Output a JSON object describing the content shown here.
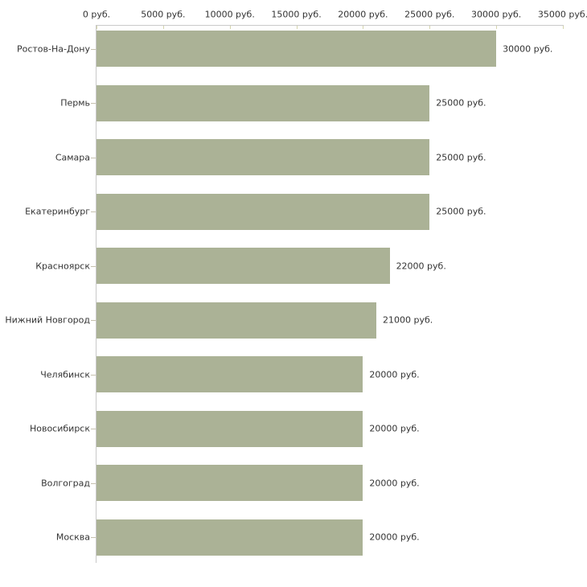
{
  "chart_data": {
    "type": "bar",
    "orientation": "horizontal",
    "title": "",
    "xlabel": "",
    "ylabel": "",
    "unit": "руб.",
    "categories": [
      "Ростов-На-Дону",
      "Пермь",
      "Самара",
      "Екатеринбург",
      "Красноярск",
      "Нижний Новгород",
      "Челябинск",
      "Новосибирск",
      "Волгоград",
      "Москва"
    ],
    "values": [
      30000,
      25000,
      25000,
      25000,
      22000,
      21000,
      20000,
      20000,
      20000,
      20000
    ],
    "value_labels": [
      "30000 руб.",
      "25000 руб.",
      "25000 руб.",
      "25000 руб.",
      "22000 руб.",
      "21000 руб.",
      "20000 руб.",
      "20000 руб.",
      "20000 руб.",
      "20000 руб."
    ],
    "x_ticks": [
      0,
      5000,
      10000,
      15000,
      20000,
      25000,
      30000,
      35000
    ],
    "x_tick_labels": [
      "0 руб.",
      "5000 руб.",
      "10000 руб.",
      "15000 руб.",
      "20000 руб.",
      "25000 руб.",
      "30000 руб.",
      "35000 руб."
    ],
    "xlim": [
      0,
      35000
    ],
    "grid": false,
    "legend": false,
    "colors": {
      "bar": "#abb296",
      "axis_line": "#c9c9c9",
      "x_tick": "#d5d5ad",
      "y_tick": "#c6c0ae",
      "text": "#333333",
      "background": "#ffffff"
    }
  }
}
